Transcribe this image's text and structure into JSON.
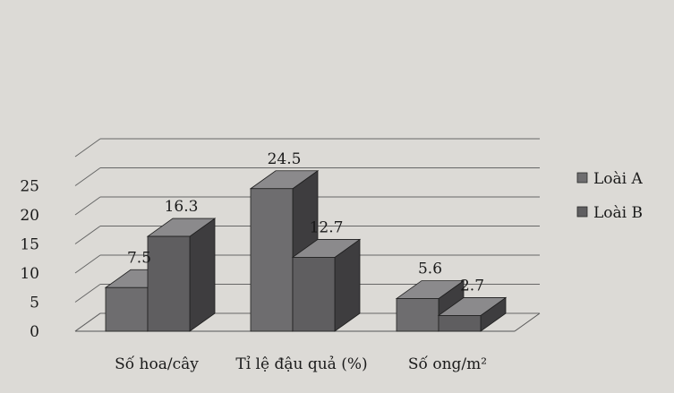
{
  "chart_data": {
    "type": "bar",
    "style": "3d-clustered-column",
    "categories": [
      "Số hoa/cây",
      "Tỉ lệ đậu quả (%)",
      "Số ong/m²"
    ],
    "series": [
      {
        "name": "Loài A",
        "values": [
          7.5,
          24.5,
          5.6
        ],
        "color": "#6e6d6f"
      },
      {
        "name": "Loài B",
        "values": [
          16.3,
          12.7,
          2.7
        ],
        "color": "#5f5e60"
      }
    ],
    "data_labels": [
      [
        "7.5",
        "24.5",
        "5.6"
      ],
      [
        "16.3",
        "12.7",
        "2.7"
      ]
    ],
    "y_ticks": [
      "0",
      "5",
      "10",
      "15",
      "20",
      "25"
    ],
    "ylim": [
      0,
      30
    ],
    "grid": true,
    "legend_position": "right"
  }
}
